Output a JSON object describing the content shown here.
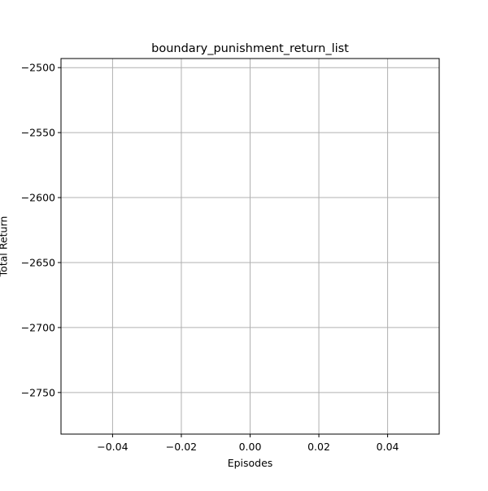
{
  "chart_data": {
    "type": "line",
    "title": "boundary_punishment_return_list",
    "xlabel": "Episodes",
    "ylabel": "Total Return",
    "xlim": [
      -0.055,
      0.055
    ],
    "ylim": [
      -2782,
      -2493
    ],
    "x_ticks": [
      -0.04,
      -0.02,
      0.0,
      0.02,
      0.04
    ],
    "x_tick_labels": [
      "−0.04",
      "−0.02",
      "0.00",
      "0.02",
      "0.04"
    ],
    "y_ticks": [
      -2500,
      -2550,
      -2600,
      -2650,
      -2700,
      -2750
    ],
    "y_tick_labels": [
      "−2500",
      "−2550",
      "−2600",
      "−2650",
      "−2700",
      "−2750"
    ],
    "grid": true,
    "series": [
      {
        "x": [],
        "y": []
      }
    ],
    "colors": {
      "grid": "#b0b0b0",
      "axis": "#000000",
      "background": "#ffffff",
      "line": "#1f77b4"
    }
  }
}
